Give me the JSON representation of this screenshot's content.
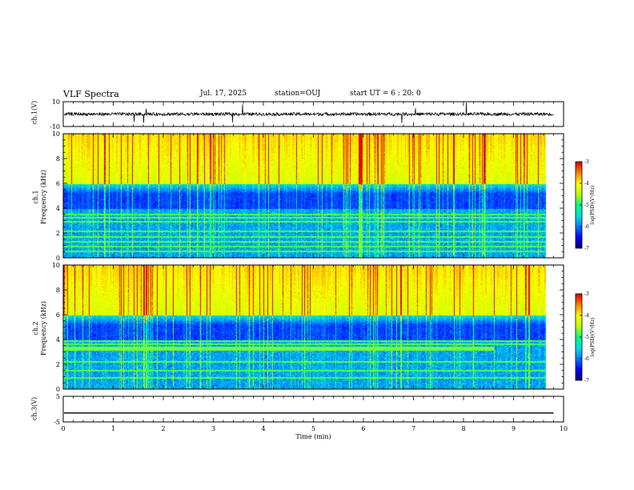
{
  "header": {
    "title": "VLF Spectra",
    "date": "Jul. 17, 2025",
    "station": "station=OUJ",
    "start": "start UT =  6 : 20: 0"
  },
  "colors": {
    "spectrogram_scale": [
      "#00007a",
      "#0000ff",
      "#0080ff",
      "#00e0e0",
      "#00ff80",
      "#c0ff00",
      "#ffff00",
      "#ff8000",
      "#e00000"
    ],
    "trace": "#000000"
  },
  "chart_data": [
    {
      "id": "ch1-waveform",
      "type": "line",
      "ylabel": "ch.1(V)",
      "ylim": [
        -10,
        10
      ],
      "yticks": [
        "10",
        "-10"
      ],
      "baseline": 0,
      "noise_amplitude": 1.3
    },
    {
      "id": "ch1-spectrogram",
      "type": "heatmap",
      "ylabel": "ch.1\nFrequency (kHz)",
      "ylabel_line1": "ch.1",
      "ylabel_line2": "Frequency (kHz)",
      "ylim": [
        0,
        10
      ],
      "yticks": [
        "0",
        "2",
        "4",
        "6",
        "8",
        "10"
      ],
      "colorbar": {
        "label": "log(PSD)(V²/Hz)",
        "range": [
          -7,
          -3
        ],
        "ticks": [
          "-3",
          "-4",
          "-5",
          "-6",
          "-7"
        ]
      },
      "high_band_khz": [
        6,
        10
      ],
      "quiet_band_khz": [
        4,
        6
      ],
      "persistent_lines_khz": [
        0.5,
        0.9,
        1.3,
        1.7,
        2.1,
        2.9,
        3.2,
        3.5
      ]
    },
    {
      "id": "ch2-spectrogram",
      "type": "heatmap",
      "ylabel_line1": "ch.2",
      "ylabel_line2": "Frequency (kHz)",
      "ylim": [
        0,
        10
      ],
      "yticks": [
        "0",
        "2",
        "4",
        "6",
        "8",
        "10"
      ],
      "colorbar": {
        "label": "log(PSD)(V²/Hz)",
        "range": [
          -7,
          -3
        ],
        "ticks": [
          "-3",
          "-4",
          "-5",
          "-6",
          "-7"
        ]
      },
      "high_band_khz": [
        6,
        10
      ],
      "quiet_band_khz": [
        4,
        6
      ],
      "strong_line_khz": 3.3,
      "strong_line_end_min": 8.75,
      "persistent_lines_khz": [
        0.9,
        1.5,
        2.2,
        3.6,
        3.9
      ]
    },
    {
      "id": "ch3-waveform",
      "type": "line",
      "ylabel": "ch.3(V)",
      "ylim": [
        -5,
        5
      ],
      "yticks": [
        "5",
        "-5"
      ],
      "baseline": -1.5,
      "noise_amplitude": 0
    }
  ],
  "xaxis": {
    "label": "Time (min)",
    "range": [
      0,
      10
    ],
    "ticks": [
      "0",
      "1",
      "2",
      "3",
      "4",
      "5",
      "6",
      "7",
      "8",
      "9",
      "10"
    ],
    "data_end_min": 9.8
  }
}
